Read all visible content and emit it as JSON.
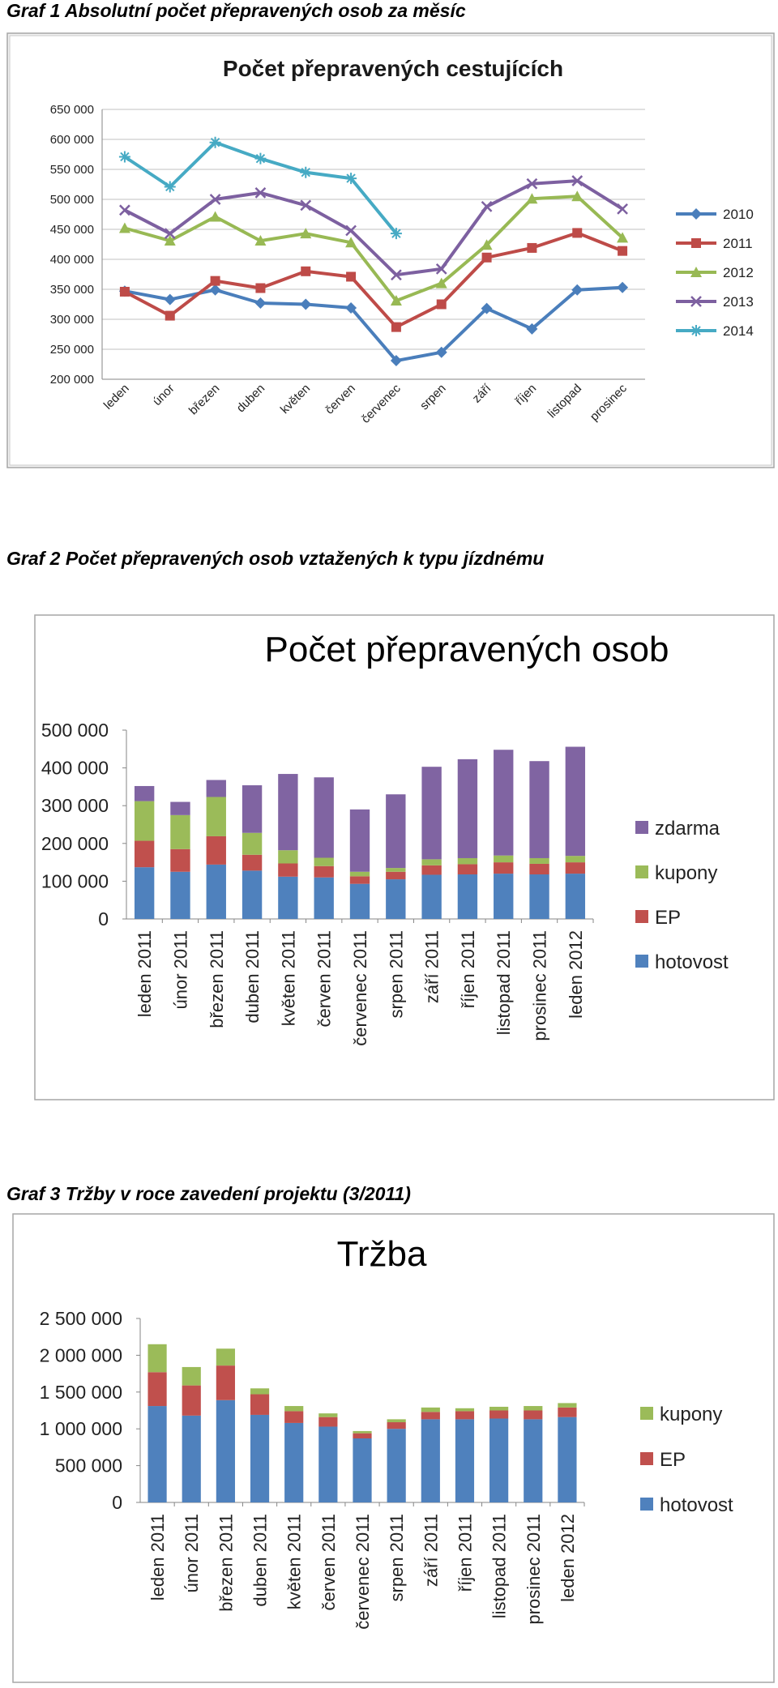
{
  "captions": {
    "graf1": "Graf 1 Absolutní počet přepravených osob za měsíc",
    "graf2": "Graf 2 Počet přepravených osob vztažených k typu jízdnému",
    "graf3": "Graf 3 Tržby v roce zavedení projektu (3/2011)"
  },
  "chart_data": [
    {
      "type": "line",
      "title": "Počet přepravených cestujících",
      "categories": [
        "leden",
        "únor",
        "březen",
        "duben",
        "květen",
        "červen",
        "červenec",
        "srpen",
        "září",
        "říjen",
        "listopad",
        "prosinec"
      ],
      "ylim": [
        200000,
        650000
      ],
      "yticks": [
        "200 000",
        "250 000",
        "300 000",
        "350 000",
        "400 000",
        "450 000",
        "500 000",
        "550 000",
        "600 000",
        "650 000"
      ],
      "grid": true,
      "legend_position": "right",
      "series": [
        {
          "name": "2010",
          "color": "#4a7ebb",
          "marker": "diamond",
          "values": [
            347000,
            333000,
            349000,
            327000,
            325000,
            319000,
            231000,
            245000,
            318000,
            284000,
            349000,
            353000
          ]
        },
        {
          "name": "2011",
          "color": "#be4b48",
          "marker": "square",
          "values": [
            346000,
            306000,
            364000,
            352000,
            380000,
            371000,
            287000,
            325000,
            403000,
            419000,
            444000,
            414000
          ]
        },
        {
          "name": "2012",
          "color": "#98b954",
          "marker": "triangle",
          "values": [
            452000,
            431000,
            471000,
            431000,
            443000,
            428000,
            331000,
            360000,
            424000,
            501000,
            505000,
            436000
          ]
        },
        {
          "name": "2013",
          "color": "#7d60a0",
          "marker": "x",
          "values": [
            482000,
            443000,
            500000,
            511000,
            490000,
            448000,
            374000,
            384000,
            488000,
            526000,
            531000,
            484000
          ]
        },
        {
          "name": "2014",
          "color": "#46aac4",
          "marker": "star",
          "values": [
            571000,
            521000,
            595000,
            568000,
            545000,
            535000,
            443000,
            null,
            null,
            null,
            null,
            null
          ]
        }
      ]
    },
    {
      "type": "bar",
      "stacked": true,
      "title": "Počet přepravených osob",
      "categories": [
        "leden 2011",
        "únor 2011",
        "březen 2011",
        "duben 2011",
        "květen 2011",
        "červen 2011",
        "červenec 2011",
        "srpen 2011",
        "září 2011",
        "říjen 2011",
        "listopad 2011",
        "prosinec 2011",
        "leden 2012"
      ],
      "ylim": [
        0,
        500000
      ],
      "yticks": [
        "0",
        "100 000",
        "200 000",
        "300 000",
        "400 000",
        "500 000"
      ],
      "grid": false,
      "legend_position": "right",
      "series": [
        {
          "name": "hotovost",
          "color": "#4f81bd",
          "values": [
            137000,
            125000,
            144000,
            128000,
            112000,
            110000,
            93000,
            105000,
            117000,
            118000,
            120000,
            118000,
            120000
          ]
        },
        {
          "name": "EP",
          "color": "#c0504d",
          "values": [
            70000,
            60000,
            75000,
            42000,
            35000,
            30000,
            20000,
            20000,
            25000,
            27000,
            30000,
            28000,
            30000
          ]
        },
        {
          "name": "kupony",
          "color": "#9bbb59",
          "values": [
            105000,
            90000,
            104000,
            58000,
            35000,
            22000,
            12000,
            10000,
            16000,
            16000,
            18000,
            15000,
            17000
          ]
        },
        {
          "name": "zdarma",
          "color": "#8064a2",
          "values": [
            40000,
            35000,
            45000,
            126000,
            202000,
            213000,
            165000,
            195000,
            245000,
            262000,
            280000,
            257000,
            289000
          ]
        }
      ]
    },
    {
      "type": "bar",
      "stacked": true,
      "title": "Tržba",
      "categories": [
        "leden 2011",
        "únor 2011",
        "březen 2011",
        "duben 2011",
        "květen 2011",
        "červen 2011",
        "červenec 2011",
        "srpen 2011",
        "září 2011",
        "říjen 2011",
        "listopad 2011",
        "prosinec 2011",
        "leden 2012"
      ],
      "ylim": [
        0,
        2500000
      ],
      "yticks": [
        "0",
        "500 000",
        "1 000 000",
        "1 500 000",
        "2 000 000",
        "2 500 000"
      ],
      "grid": false,
      "legend_position": "right",
      "series": [
        {
          "name": "hotovost",
          "color": "#4f81bd",
          "values": [
            1310000,
            1180000,
            1390000,
            1190000,
            1080000,
            1030000,
            870000,
            1000000,
            1130000,
            1130000,
            1140000,
            1130000,
            1160000
          ]
        },
        {
          "name": "EP",
          "color": "#c0504d",
          "values": [
            460000,
            410000,
            470000,
            280000,
            160000,
            130000,
            70000,
            90000,
            100000,
            110000,
            110000,
            120000,
            130000
          ]
        },
        {
          "name": "kupony",
          "color": "#9bbb59",
          "values": [
            380000,
            250000,
            230000,
            80000,
            70000,
            50000,
            30000,
            40000,
            60000,
            40000,
            50000,
            60000,
            60000
          ]
        }
      ]
    }
  ]
}
